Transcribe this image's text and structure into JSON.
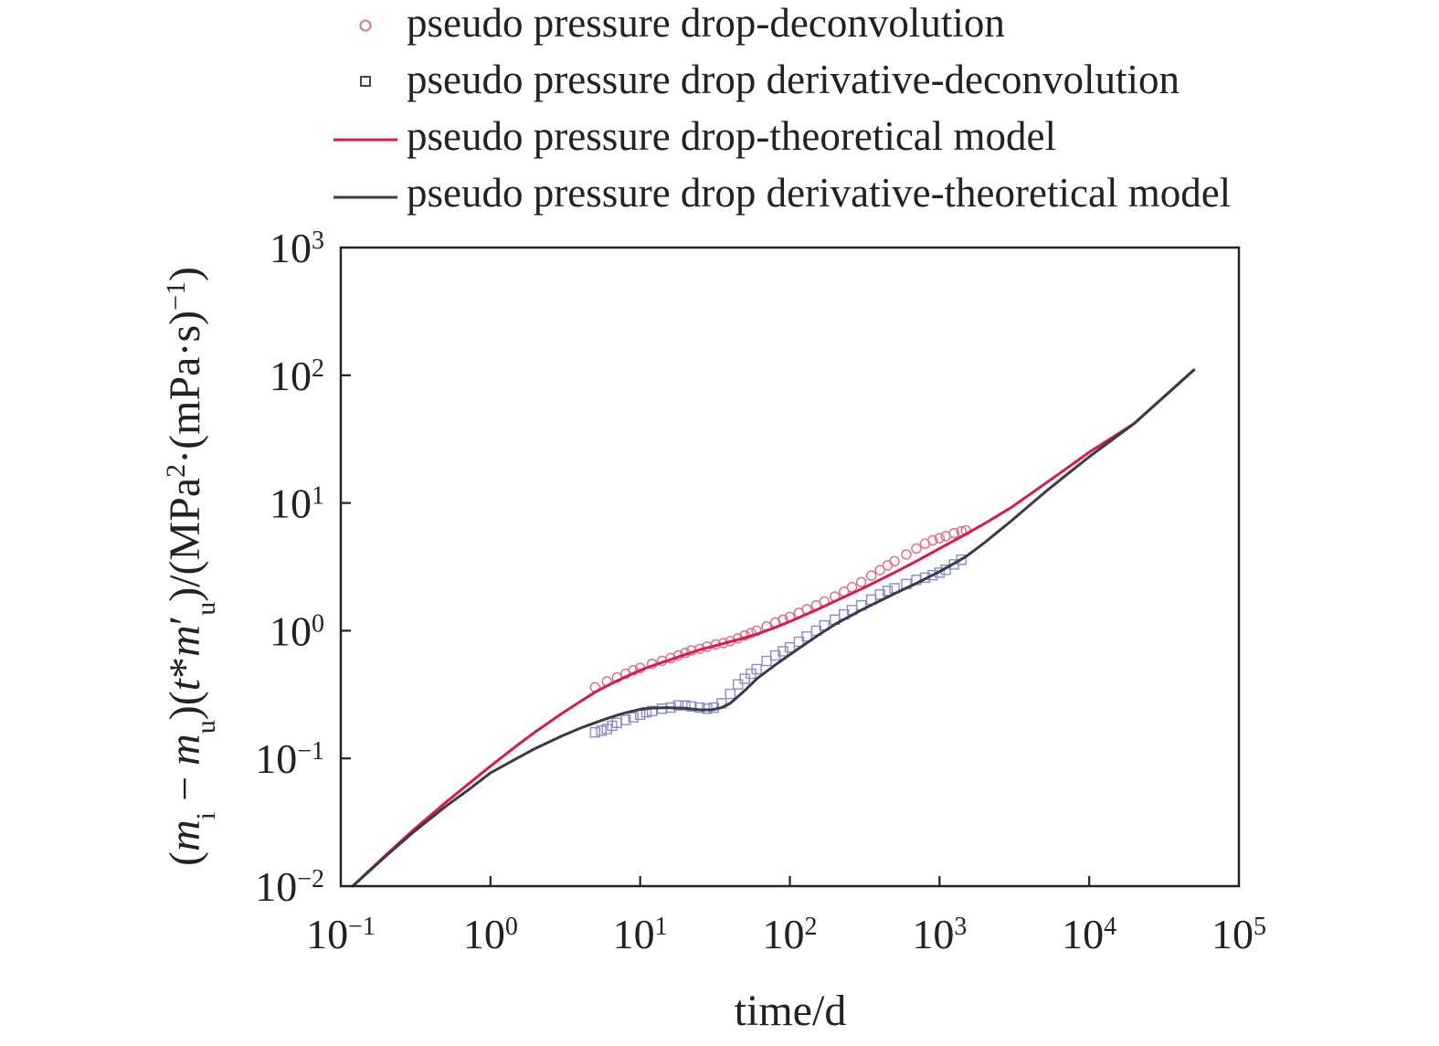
{
  "chart_data": {
    "type": "line",
    "title": "",
    "xlabel": "time/d",
    "ylabel": "(m_i − m_u)(t*m′_u)/(MPa²·(mPa·s)⁻¹)",
    "xscale": "log",
    "yscale": "log",
    "xlim": [
      0.1,
      100000
    ],
    "ylim": [
      0.01,
      1000
    ],
    "x_ticks": [
      {
        "value": 0.1,
        "base": "10",
        "exp": "−1"
      },
      {
        "value": 1,
        "base": "10",
        "exp": "0"
      },
      {
        "value": 10,
        "base": "10",
        "exp": "1"
      },
      {
        "value": 100,
        "base": "10",
        "exp": "2"
      },
      {
        "value": 1000,
        "base": "10",
        "exp": "3"
      },
      {
        "value": 10000,
        "base": "10",
        "exp": "4"
      },
      {
        "value": 100000,
        "base": "10",
        "exp": "5"
      }
    ],
    "y_ticks": [
      {
        "value": 0.01,
        "base": "10",
        "exp": "−2"
      },
      {
        "value": 0.1,
        "base": "10",
        "exp": "−1"
      },
      {
        "value": 1,
        "base": "10",
        "exp": "0"
      },
      {
        "value": 10,
        "base": "10",
        "exp": "1"
      },
      {
        "value": 100,
        "base": "10",
        "exp": "2"
      },
      {
        "value": 1000,
        "base": "10",
        "exp": "3"
      }
    ],
    "grid": false,
    "legend_position": "top",
    "series": [
      {
        "name": "pseudo pressure drop-deconvolution",
        "kind": "markers",
        "marker": "circle",
        "color": "#e0708a",
        "x": [
          5,
          6,
          7,
          8,
          9,
          10,
          12,
          14,
          16,
          18,
          20,
          22,
          25,
          28,
          32,
          36,
          40,
          45,
          50,
          55,
          60,
          70,
          80,
          90,
          100,
          115,
          130,
          150,
          170,
          200,
          230,
          260,
          300,
          350,
          400,
          450,
          500,
          600,
          700,
          800,
          900,
          1000,
          1100,
          1250,
          1400,
          1500
        ],
        "y": [
          0.36,
          0.4,
          0.43,
          0.46,
          0.49,
          0.51,
          0.55,
          0.58,
          0.61,
          0.64,
          0.67,
          0.7,
          0.72,
          0.75,
          0.78,
          0.8,
          0.83,
          0.87,
          0.92,
          0.96,
          1.0,
          1.08,
          1.16,
          1.22,
          1.28,
          1.38,
          1.47,
          1.58,
          1.69,
          1.85,
          2.02,
          2.19,
          2.4,
          2.7,
          2.98,
          3.25,
          3.5,
          3.95,
          4.4,
          4.8,
          5.1,
          5.3,
          5.5,
          5.8,
          6.0,
          6.1
        ]
      },
      {
        "name": "pseudo pressure drop derivative-deconvolution",
        "kind": "markers",
        "marker": "square",
        "color": "#8a8ad0",
        "x": [
          5,
          5.5,
          6,
          6.5,
          7,
          8,
          9,
          10,
          11,
          12,
          14,
          16,
          18,
          20,
          22,
          25,
          28,
          31,
          35,
          40,
          45,
          50,
          55,
          60,
          70,
          80,
          90,
          100,
          115,
          130,
          150,
          170,
          200,
          230,
          260,
          300,
          350,
          400,
          450,
          500,
          600,
          700,
          800,
          900,
          1000,
          1100,
          1250,
          1400
        ],
        "y": [
          0.16,
          0.165,
          0.17,
          0.18,
          0.19,
          0.2,
          0.21,
          0.22,
          0.23,
          0.235,
          0.245,
          0.25,
          0.26,
          0.26,
          0.255,
          0.25,
          0.245,
          0.25,
          0.27,
          0.32,
          0.38,
          0.42,
          0.46,
          0.5,
          0.58,
          0.64,
          0.69,
          0.74,
          0.82,
          0.9,
          1.0,
          1.1,
          1.22,
          1.34,
          1.45,
          1.58,
          1.75,
          1.92,
          2.05,
          2.15,
          2.32,
          2.5,
          2.6,
          2.72,
          2.85,
          3.0,
          3.3,
          3.6
        ]
      },
      {
        "name": "pseudo pressure drop-theoretical model",
        "kind": "line",
        "color": "#d81b4a",
        "x": [
          0.12,
          0.2,
          0.3,
          0.5,
          0.7,
          1,
          1.5,
          2,
          3,
          4,
          5,
          6,
          7,
          8,
          10,
          12,
          15,
          20,
          25,
          30,
          40,
          50,
          60,
          80,
          100,
          150,
          200,
          300,
          500,
          700,
          1000,
          1500,
          2000,
          3000,
          5000,
          7000,
          10000,
          20000,
          50000
        ],
        "y": [
          0.01,
          0.0175,
          0.027,
          0.045,
          0.062,
          0.087,
          0.126,
          0.162,
          0.225,
          0.28,
          0.33,
          0.37,
          0.405,
          0.435,
          0.49,
          0.53,
          0.58,
          0.65,
          0.71,
          0.75,
          0.82,
          0.88,
          0.94,
          1.06,
          1.18,
          1.45,
          1.7,
          2.12,
          2.85,
          3.5,
          4.4,
          5.7,
          6.9,
          9.2,
          14.0,
          18.5,
          25.0,
          42.0,
          110.0
        ]
      },
      {
        "name": "pseudo pressure drop derivative-theoretical model",
        "kind": "line",
        "color": "#3a3a4a",
        "x": [
          0.12,
          0.2,
          0.3,
          0.5,
          0.7,
          1,
          1.5,
          2,
          3,
          4,
          5,
          6,
          7,
          8,
          10,
          12,
          15,
          20,
          25,
          30,
          35,
          40,
          50,
          60,
          80,
          100,
          150,
          200,
          300,
          500,
          700,
          1000,
          1500,
          2000,
          3000,
          5000,
          7000,
          10000,
          20000,
          50000
        ],
        "y": [
          0.01,
          0.0172,
          0.026,
          0.042,
          0.056,
          0.077,
          0.1,
          0.12,
          0.15,
          0.173,
          0.19,
          0.205,
          0.218,
          0.228,
          0.242,
          0.248,
          0.25,
          0.247,
          0.24,
          0.24,
          0.25,
          0.27,
          0.34,
          0.42,
          0.54,
          0.65,
          0.9,
          1.12,
          1.45,
          1.95,
          2.35,
          2.9,
          3.8,
          4.9,
          7.2,
          12.0,
          16.5,
          23.0,
          42.0,
          110.0
        ]
      }
    ]
  }
}
